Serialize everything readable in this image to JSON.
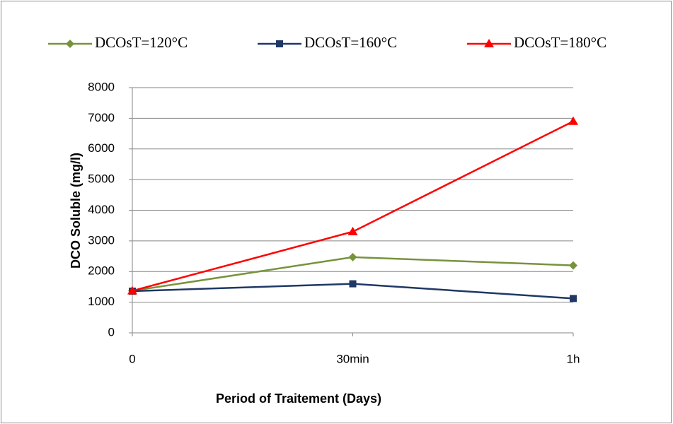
{
  "chart_data": {
    "type": "line",
    "x_label": "Period of Traitement (Days)",
    "y_label": "DCO Soluble (mg/l)",
    "categories": [
      "0",
      "30min",
      "1h"
    ],
    "series": [
      {
        "name": "DCOsT=120°C",
        "color": "#77933c",
        "marker": "diamond",
        "values": [
          1370,
          2470,
          2200
        ]
      },
      {
        "name": "DCOsT=160°C",
        "color": "#1f3864",
        "marker": "square",
        "values": [
          1360,
          1600,
          1120
        ]
      },
      {
        "name": "DCOsT=180°C",
        "color": "#ff0000",
        "marker": "triangle",
        "values": [
          1370,
          3300,
          6900
        ]
      }
    ],
    "ylim": [
      0,
      8000
    ],
    "yticks": [
      0,
      1000,
      2000,
      3000,
      4000,
      5000,
      6000,
      7000,
      8000
    ],
    "grid": true,
    "legend": "top"
  }
}
